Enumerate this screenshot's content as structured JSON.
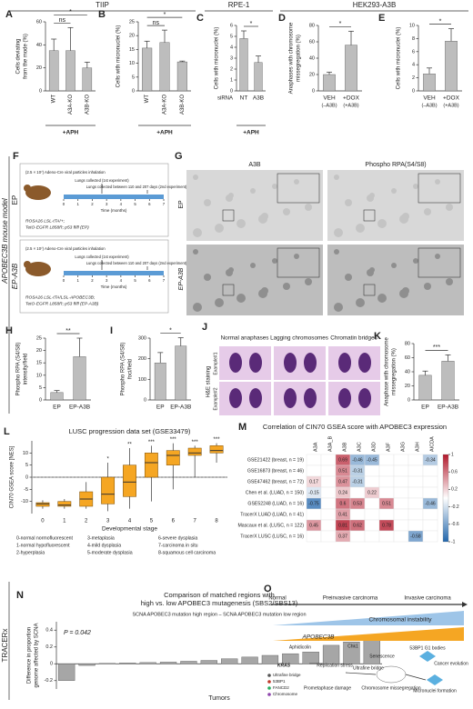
{
  "headers": [
    "TIIP",
    "RPE-1",
    "HEK293-A3B"
  ],
  "side_labels": [
    "APOBEC3B mouse model",
    "TRACERx"
  ],
  "chart_data": [
    {
      "type": "bar",
      "panel": "A",
      "ylabel": [
        "Cells deviating",
        "from the mode (%)"
      ],
      "categories": [
        "WT",
        "A3A-KO",
        "A3B-KO"
      ],
      "values": [
        35,
        35,
        20
      ],
      "errors": [
        10,
        20,
        5
      ],
      "ylim": [
        0,
        60
      ],
      "yticks": [
        0,
        20,
        40,
        60
      ],
      "rotate_labels": true,
      "brackets": [
        {
          "label": "ns",
          "categories": [
            "WT",
            "A3A-KO"
          ]
        },
        {
          "label": "*",
          "categories": [
            "WT",
            "A3B-KO"
          ]
        }
      ],
      "footnote": "+APH",
      "color": "#bdbdbd"
    },
    {
      "type": "bar",
      "panel": "B",
      "ylabel": [
        "Cells with micronuclei (%)"
      ],
      "categories": [
        "WT",
        "A3A-KO",
        "A3B-KO"
      ],
      "values": [
        15.5,
        17.5,
        10.5
      ],
      "errors": [
        2.5,
        4.5,
        0.3
      ],
      "ylim": [
        0,
        25
      ],
      "yticks": [
        0,
        5,
        10,
        15,
        20,
        25
      ],
      "rotate_labels": true,
      "brackets": [
        {
          "label": "ns",
          "categories": [
            "WT",
            "A3A-KO"
          ]
        },
        {
          "label": "*",
          "categories": [
            "WT",
            "A3B-KO"
          ]
        }
      ],
      "footnote": "+APH",
      "color": "#bdbdbd"
    },
    {
      "type": "bar",
      "panel": "C",
      "ylabel": [
        "Cells with micronuclei (%)"
      ],
      "categories": [
        "NT",
        "A3B"
      ],
      "values": [
        4.8,
        2.6
      ],
      "errors": [
        0.7,
        0.6
      ],
      "ylim": [
        0,
        6
      ],
      "yticks": [
        0,
        1,
        2,
        3,
        4,
        5,
        6
      ],
      "xlabel": "siRNA",
      "brackets": [
        {
          "label": "*",
          "categories": [
            "NT",
            "A3B"
          ]
        }
      ],
      "footnote": "+APH",
      "color": "#bdbdbd"
    },
    {
      "type": "bar",
      "panel": "D",
      "ylabel": [
        "Anaphases with chromosome",
        "missegregation (%)"
      ],
      "categories": [
        "VEH",
        "+DOX"
      ],
      "sublabels": [
        "(–A3B)",
        "(+A3B)"
      ],
      "values": [
        20,
        56
      ],
      "errors": [
        3,
        17
      ],
      "ylim": [
        0,
        80
      ],
      "yticks": [
        0,
        20,
        40,
        60,
        80
      ],
      "brackets": [
        {
          "label": "*",
          "categories": [
            "VEH",
            "+DOX"
          ]
        }
      ],
      "color": "#bdbdbd"
    },
    {
      "type": "bar",
      "panel": "E",
      "ylabel": [
        "Cells with micronuclei (%)"
      ],
      "categories": [
        "VEH",
        "+DOX"
      ],
      "sublabels": [
        "(–A3B)",
        "(+A3B)"
      ],
      "values": [
        2.6,
        7.6
      ],
      "errors": [
        0.9,
        1.9
      ],
      "ylim": [
        0,
        10
      ],
      "yticks": [
        0,
        2,
        4,
        6,
        8,
        10
      ],
      "brackets": [
        {
          "label": "*",
          "categories": [
            "VEH",
            "+DOX"
          ]
        }
      ],
      "color": "#bdbdbd"
    },
    {
      "type": "bar",
      "panel": "H",
      "ylabel": [
        "Phospho RPA (S4/S8)",
        "intensity/field"
      ],
      "categories": [
        "EP",
        "EP-A3B"
      ],
      "values": [
        3,
        17.5
      ],
      "errors": [
        0.8,
        7.5
      ],
      "ylim": [
        0,
        25
      ],
      "yticks": [
        0,
        5,
        10,
        15,
        20,
        25
      ],
      "brackets": [
        {
          "label": "**",
          "categories": [
            "EP",
            "EP-A3B"
          ]
        }
      ],
      "color": "#bdbdbd"
    },
    {
      "type": "bar",
      "panel": "I",
      "ylabel": [
        "Phospho RPA (S4/S8)",
        "foci/field"
      ],
      "categories": [
        "EP",
        "EP-A3B"
      ],
      "values": [
        180,
        262
      ],
      "errors": [
        50,
        40
      ],
      "ylim": [
        0,
        300
      ],
      "yticks": [
        0,
        100,
        200,
        300
      ],
      "brackets": [
        {
          "label": "*",
          "categories": [
            "EP",
            "EP-A3B"
          ]
        }
      ],
      "color": "#bdbdbd"
    },
    {
      "type": "bar",
      "panel": "K",
      "ylabel": [
        "Anaphase with chromosome",
        "missegregation (%)"
      ],
      "categories": [
        "EP",
        "EP-A3B"
      ],
      "values": [
        35,
        55
      ],
      "errors": [
        6,
        9
      ],
      "ylim": [
        0,
        80
      ],
      "yticks": [
        0,
        20,
        40,
        60,
        80
      ],
      "brackets": [
        {
          "label": "***",
          "categories": [
            "EP",
            "EP-A3B"
          ]
        }
      ],
      "color": "#bdbdbd"
    },
    {
      "type": "box",
      "panel": "L",
      "title": [
        "LUSC progression data set (GSE33479)"
      ],
      "ylabel": [
        "CIN70 GSEA score [NES]"
      ],
      "xlabel": "Developmental stage",
      "categories": [
        "0",
        "1",
        "2",
        "3",
        "4",
        "5",
        "6",
        "7",
        "8"
      ],
      "low": [
        -13,
        -13,
        -13,
        -14,
        -13,
        -10,
        -5,
        0,
        6
      ],
      "q1": [
        -12,
        -12,
        -12,
        -11,
        -8,
        0,
        5,
        9,
        10
      ],
      "median": [
        -11,
        -11.5,
        -9,
        -7,
        -2,
        6,
        9,
        10,
        11
      ],
      "q3": [
        -10.5,
        -10,
        -6,
        0,
        5,
        10,
        11,
        12,
        13
      ],
      "high": [
        -9.5,
        -9,
        -2,
        6,
        12,
        13,
        14,
        13,
        14
      ],
      "stars": [
        null,
        null,
        null,
        "*",
        "**",
        "***",
        "***",
        "***",
        "***"
      ],
      "ylim": [
        -15,
        15
      ],
      "yticks": [
        -10,
        -5,
        0,
        5,
        10
      ],
      "color": "#f5a623",
      "legend": [
        "0-normal normofluorescent",
        "1-normal hypofluorescent",
        "2-hyperplasia",
        "3-metaplasia",
        "4-mild dysplasia",
        "5-moderate dysplasia",
        "6-severe dysplasia",
        "7-carcinoma in situ",
        "8-squamous cell carcinoma"
      ]
    },
    {
      "type": "heatmap",
      "panel": "M",
      "title": [
        "Correlation of CIN70 GSEA score with APOBEC3 expression"
      ],
      "columns": [
        "A3A",
        "A3A_B",
        "A3B",
        "A3C",
        "A3D",
        "A3F",
        "A3G",
        "A3H",
        "AICDA"
      ],
      "rows": [
        "GSE21422 (breast, n = 19)",
        "GSE16873 (breast, n = 46)",
        "GSE47462 (breast, n = 72)",
        "Chen et al. (LUAD, n = 150)",
        "GSE52248 (LUAD, n = 16)",
        "TracerX LUAD (LUAD, n = 41)",
        "Mascaux et al. (LUSC, n = 122)",
        "TracerX LUSC (LUSC, n = 16)"
      ],
      "values": [
        [
          null,
          null,
          0.69,
          -0.46,
          -0.45,
          null,
          null,
          null,
          -0.34
        ],
        [
          null,
          null,
          0.51,
          -0.31,
          null,
          null,
          null,
          null,
          null
        ],
        [
          0.17,
          null,
          0.47,
          -0.31,
          null,
          null,
          null,
          null,
          null
        ],
        [
          -0.15,
          null,
          0.24,
          null,
          0.22,
          null,
          null,
          null,
          null
        ],
        [
          -0.75,
          null,
          0.6,
          0.53,
          null,
          0.51,
          null,
          null,
          -0.46
        ],
        [
          null,
          null,
          0.41,
          null,
          null,
          null,
          null,
          null,
          null
        ],
        [
          0.45,
          null,
          0.81,
          0.62,
          null,
          0.78,
          null,
          null,
          null
        ],
        [
          null,
          null,
          0.37,
          null,
          null,
          null,
          null,
          -0.58,
          null
        ]
      ],
      "clim": [
        -1,
        1
      ],
      "cticks": [
        1,
        0.6,
        0.2,
        -0.2,
        -0.6,
        -1
      ],
      "colors": [
        "#2166ac",
        "#ffffff",
        "#b2182b"
      ]
    },
    {
      "type": "bar",
      "panel": "N",
      "title": [
        "Comparison of matched regions with",
        "high vs. low APOBEC3 mutagenesis (SBS2/SBS13)"
      ],
      "subtitle": "SCNA APOBEC3 mutation high region – SCNA APOBEC3 mutation low region",
      "annotation": "P = 0.042",
      "ylabel": [
        "Difference in proportion",
        "genome affected by SCNA"
      ],
      "xlabel": "Tumors",
      "values": [
        -0.2,
        -0.02,
        0.005,
        0.01,
        0.015,
        0.02,
        0.03,
        0.04,
        0.06,
        0.08,
        0.1,
        0.12,
        0.14,
        0.22,
        0.26,
        0.32
      ],
      "ylim": [
        -0.3,
        0.5
      ],
      "yticks": [
        -0.2,
        0,
        0.2,
        0.4
      ],
      "color": "#a6a6a6"
    }
  ],
  "panels": {
    "F": {
      "letter": "F",
      "dose": "(2.5 × 10⁷) Adeno-Cre viral particles inhalation",
      "first": "Lungs collected (1st experiment)",
      "second": "Lungs collected between 110 and 207 days (2nd experiment)",
      "axis": "Time (months)",
      "ticks": [
        0,
        1,
        2,
        3,
        4,
        5,
        6,
        7
      ],
      "rows": [
        {
          "label": "EP",
          "genotype": [
            "ROSA26 LSL-tTA/+;",
            "TetO-EGFR L858R; p53 fl/fl (EP)"
          ]
        },
        {
          "label": "EP-A3B",
          "genotype": [
            "ROSA26 LSL-tTA/LSL-APOBEC3B;",
            "TetO-EGFR L858R; p53 fl/fl (EP-A3B)"
          ]
        }
      ]
    },
    "G": {
      "letter": "G",
      "columns": [
        "A3B",
        "Phospho RPA(S4/S8)"
      ],
      "rows": [
        "EP",
        "EP-A3B"
      ]
    },
    "J": {
      "letter": "J",
      "columns": [
        "Normal anaphases",
        "Lagging chromosomes",
        "Chromatin bridges"
      ],
      "side": "H&E staining",
      "rows": [
        "Example#1",
        "Example#2"
      ]
    },
    "O": {
      "letter": "O",
      "stages": [
        "Normal",
        "Preinvasive carcinoma",
        "Invasive carcinoma"
      ],
      "cin": "Chromosomal instability",
      "apobec": "APOBEC3B",
      "nodes": [
        "Aphidicolin",
        "Chk1",
        "Senescence",
        "KRAS",
        "Replication stress",
        "Ultrafine bridge",
        "53BP1 G1 bodies",
        "Cancer evolution",
        "Prometaphase damage",
        "Chromosome missegregation",
        "Micronuclei formation"
      ],
      "legend": [
        "Ultrafine bridge",
        "53BP1",
        "FANCD2",
        "Chromosome"
      ]
    }
  }
}
